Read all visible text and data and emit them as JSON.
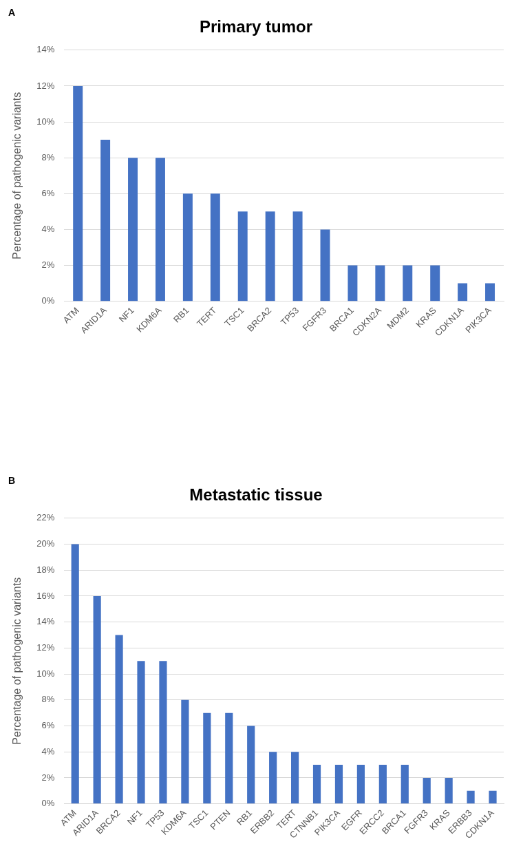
{
  "chart_data": [
    {
      "type": "bar",
      "title": "Primary tumor",
      "ylabel": "Percentage of pathogenic variants",
      "annotations": [
        "A"
      ],
      "categories": [
        "ATM",
        "ARID1A",
        "NF1",
        "KDM6A",
        "RB1",
        "TERT",
        "TSC1",
        "BRCA2",
        "TP53",
        "FGFR3",
        "BRCA1",
        "CDKN2A",
        "MDM2",
        "KRAS",
        "CDKN1A",
        "PIK3CA"
      ],
      "values": [
        12,
        9,
        8,
        8,
        6,
        6,
        5,
        5,
        5,
        4,
        2,
        2,
        2,
        2,
        1,
        1
      ],
      "color": "#4472c4",
      "ylim": [
        0,
        14
      ],
      "yticks": [
        {
          "value": 0,
          "label": "0%"
        },
        {
          "value": 2,
          "label": "2%"
        },
        {
          "value": 4,
          "label": "4%"
        },
        {
          "value": 6,
          "label": "6%"
        },
        {
          "value": 8,
          "label": "8%"
        },
        {
          "value": 10,
          "label": "10%"
        },
        {
          "value": 12,
          "label": "12%"
        },
        {
          "value": 14,
          "label": "14%"
        }
      ],
      "grid": "y",
      "legend": false
    },
    {
      "type": "bar",
      "title": "Metastatic tissue",
      "ylabel": "Percentage of pathogenic variants",
      "annotations": [
        "B"
      ],
      "categories": [
        "ATM",
        "ARID1A",
        "BRCA2",
        "NF1",
        "TP53",
        "KDM6A",
        "TSC1",
        "PTEN",
        "RB1",
        "ERBB2",
        "TERT",
        "CTNNB1",
        "PIK3CA",
        "EGFR",
        "ERCC2",
        "BRCA1",
        "FGFR3",
        "KRAS",
        "ERBB3",
        "CDKN1A"
      ],
      "values": [
        20,
        16,
        13,
        11,
        11,
        8,
        7,
        7,
        6,
        4,
        4,
        3,
        3,
        3,
        3,
        3,
        2,
        2,
        1,
        1
      ],
      "color": "#4472c4",
      "ylim": [
        0,
        22
      ],
      "yticks": [
        {
          "value": 0,
          "label": "0%"
        },
        {
          "value": 2,
          "label": "2%"
        },
        {
          "value": 4,
          "label": "4%"
        },
        {
          "value": 6,
          "label": "6%"
        },
        {
          "value": 8,
          "label": "8%"
        },
        {
          "value": 10,
          "label": "10%"
        },
        {
          "value": 12,
          "label": "12%"
        },
        {
          "value": 14,
          "label": "14%"
        },
        {
          "value": 16,
          "label": "16%"
        },
        {
          "value": 18,
          "label": "18%"
        },
        {
          "value": 20,
          "label": "20%"
        },
        {
          "value": 22,
          "label": "22%"
        }
      ],
      "grid": "y",
      "legend": false
    }
  ]
}
